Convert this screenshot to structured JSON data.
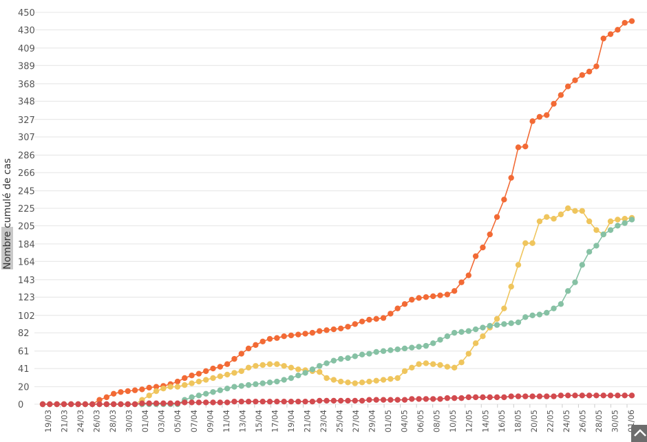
{
  "chart_data": {
    "type": "line",
    "ylabel": "Nombre cumulé de cas",
    "xlabel": "",
    "ylim": [
      0,
      450
    ],
    "y_ticks": [
      0,
      20,
      41,
      61,
      82,
      102,
      123,
      143,
      164,
      184,
      205,
      225,
      245,
      266,
      286,
      307,
      327,
      348,
      368,
      389,
      409,
      430,
      450
    ],
    "x_ticks": [
      "19/03",
      "21/03",
      "24/03",
      "26/03",
      "28/03",
      "30/03",
      "01/04",
      "03/04",
      "05/04",
      "07/04",
      "09/04",
      "11/04",
      "13/04",
      "15/04",
      "17/04",
      "19/04",
      "21/04",
      "23/04",
      "25/04",
      "27/04",
      "29/04",
      "01/05",
      "04/05",
      "06/05",
      "08/05",
      "10/05",
      "12/05",
      "14/05",
      "16/05",
      "18/05",
      "20/05",
      "22/05",
      "24/05",
      "26/05",
      "28/05",
      "30/05",
      "01/06"
    ],
    "grid": true,
    "legend": "none",
    "series": [
      {
        "color": "#f26a35",
        "values": [
          0,
          0,
          0,
          0,
          0,
          0,
          0,
          0,
          5,
          8,
          12,
          14,
          15,
          16,
          17,
          19,
          20,
          21,
          23,
          26,
          30,
          33,
          35,
          38,
          41,
          43,
          46,
          52,
          58,
          64,
          68,
          72,
          75,
          76,
          78,
          79,
          80,
          81,
          82,
          84,
          85,
          86,
          87,
          89,
          92,
          95,
          97,
          98,
          99,
          104,
          110,
          115,
          120,
          122,
          123,
          124,
          125,
          126,
          130,
          140,
          148,
          170,
          180,
          195,
          215,
          235,
          260,
          295,
          296,
          325,
          330,
          332,
          345,
          355,
          365,
          372,
          378,
          382,
          388,
          420,
          425,
          430,
          438,
          440
        ]
      },
      {
        "color": "#efc55d",
        "values": [
          0,
          0,
          0,
          0,
          0,
          0,
          0,
          0,
          0,
          0,
          0,
          0,
          0,
          0,
          5,
          10,
          15,
          18,
          20,
          20,
          22,
          24,
          26,
          28,
          30,
          32,
          34,
          36,
          38,
          42,
          44,
          45,
          46,
          46,
          44,
          42,
          40,
          39,
          38,
          37,
          30,
          28,
          26,
          25,
          24,
          25,
          26,
          27,
          28,
          29,
          30,
          38,
          42,
          46,
          47,
          46,
          45,
          43,
          42,
          48,
          58,
          70,
          78,
          88,
          98,
          110,
          135,
          160,
          185,
          185,
          210,
          215,
          213,
          218,
          225,
          222,
          222,
          210,
          200,
          195,
          210,
          212,
          213,
          214
        ]
      },
      {
        "color": "#86c1a4",
        "values": [
          0,
          0,
          0,
          0,
          0,
          0,
          0,
          0,
          0,
          0,
          0,
          0,
          0,
          0,
          0,
          0,
          0,
          0,
          0,
          0,
          5,
          8,
          10,
          12,
          14,
          16,
          18,
          20,
          21,
          22,
          23,
          24,
          25,
          26,
          28,
          30,
          33,
          36,
          40,
          44,
          47,
          50,
          52,
          53,
          55,
          57,
          58,
          60,
          61,
          62,
          63,
          64,
          65,
          66,
          67,
          70,
          74,
          78,
          82,
          83,
          84,
          86,
          88,
          90,
          91,
          92,
          93,
          94,
          100,
          102,
          103,
          105,
          110,
          115,
          130,
          140,
          160,
          175,
          182,
          195,
          200,
          205,
          208,
          212
        ]
      },
      {
        "color": "#d24a4e",
        "values": [
          0,
          0,
          0,
          0,
          0,
          0,
          0,
          0,
          0,
          0,
          0,
          0,
          0,
          0,
          1,
          1,
          1,
          1,
          1,
          1,
          2,
          2,
          2,
          2,
          2,
          2,
          2,
          3,
          3,
          3,
          3,
          3,
          3,
          3,
          3,
          3,
          3,
          3,
          3,
          4,
          4,
          4,
          4,
          4,
          4,
          4,
          5,
          5,
          5,
          5,
          5,
          5,
          6,
          6,
          6,
          6,
          6,
          7,
          7,
          7,
          8,
          8,
          8,
          8,
          8,
          8,
          9,
          9,
          9,
          9,
          9,
          9,
          9,
          10,
          10,
          10,
          10,
          10,
          10,
          10,
          10,
          10,
          10,
          10
        ]
      }
    ]
  }
}
